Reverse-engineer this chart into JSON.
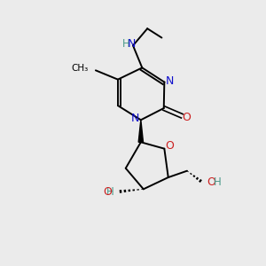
{
  "bg_color": "#ebebeb",
  "bond_color": "#000000",
  "N_color": "#1010cc",
  "O_color": "#cc2020",
  "H_color": "#4a9a8a",
  "figsize": [
    3.0,
    3.0
  ],
  "dpi": 100,
  "xlim": [
    0,
    10
  ],
  "ylim": [
    0,
    10
  ]
}
